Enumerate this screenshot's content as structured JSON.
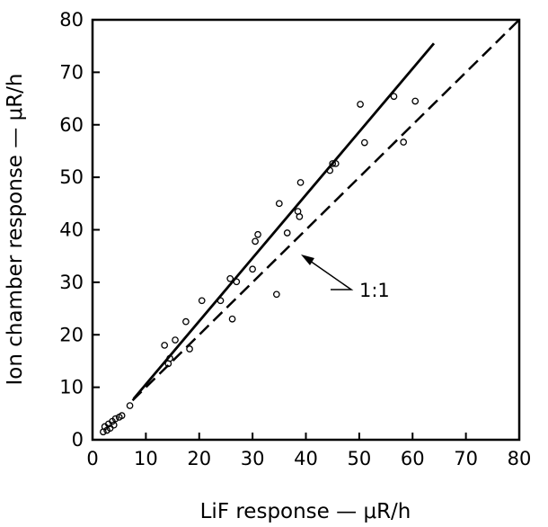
{
  "chart_data": {
    "type": "scatter",
    "xlabel": "LiF response — μR/h",
    "ylabel": "Ion chamber response — μR/h",
    "xlim": [
      0,
      80
    ],
    "ylim": [
      0,
      80
    ],
    "x_ticks": [
      "0",
      "10",
      "20",
      "30",
      "40",
      "50",
      "60",
      "70",
      "80"
    ],
    "y_ticks": [
      "0",
      "10",
      "20",
      "30",
      "40",
      "50",
      "60",
      "70",
      "80"
    ],
    "grid": false,
    "marker": "open-circle",
    "points": [
      [
        2,
        1.5
      ],
      [
        2.3,
        2.5
      ],
      [
        2.7,
        1.8
      ],
      [
        3,
        3
      ],
      [
        3.3,
        2.2
      ],
      [
        3.7,
        3.5
      ],
      [
        4,
        2.8
      ],
      [
        4.3,
        4
      ],
      [
        5,
        4.3
      ],
      [
        5.5,
        4.6
      ],
      [
        7,
        6.5
      ],
      [
        13.5,
        18
      ],
      [
        14.2,
        14.5
      ],
      [
        14.5,
        15.5
      ],
      [
        15.5,
        19
      ],
      [
        17.5,
        22.5
      ],
      [
        18.2,
        17.3
      ],
      [
        20.5,
        26.5
      ],
      [
        24,
        26.5
      ],
      [
        25.8,
        30.7
      ],
      [
        26.2,
        23
      ],
      [
        27,
        30.1
      ],
      [
        30,
        32.5
      ],
      [
        30.5,
        37.8
      ],
      [
        31,
        39.1
      ],
      [
        34.5,
        27.7
      ],
      [
        35,
        45
      ],
      [
        36.5,
        39.4
      ],
      [
        38.5,
        43.5
      ],
      [
        38.8,
        42.5
      ],
      [
        39,
        49
      ],
      [
        44.5,
        51.3
      ],
      [
        45,
        52.6
      ],
      [
        45.6,
        52.6
      ],
      [
        50.2,
        63.9
      ],
      [
        51,
        56.6
      ],
      [
        56.5,
        65.4
      ],
      [
        58.3,
        56.7
      ],
      [
        60.5,
        64.5
      ]
    ],
    "fit_line": {
      "style": "solid",
      "x": [
        7.7,
        64
      ],
      "y": [
        7.8,
        75.5
      ]
    },
    "reference_line": {
      "style": "dashed",
      "label": "1:1",
      "x": [
        7.5,
        80
      ],
      "y": [
        7.5,
        80
      ]
    }
  }
}
